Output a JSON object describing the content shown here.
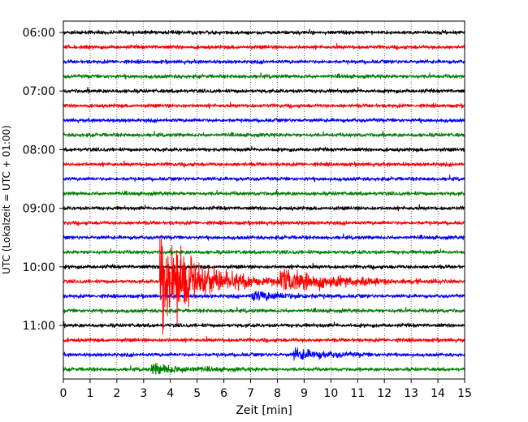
{
  "chart_data": {
    "type": "line",
    "title": "",
    "xlabel": "Zeit  [min]",
    "ylabel": "UTC (Lokalzeit = UTC + 01:00)",
    "xlim": [
      0,
      15
    ],
    "x_ticks": [
      "0",
      "1",
      "2",
      "3",
      "4",
      "5",
      "6",
      "7",
      "8",
      "9",
      "10",
      "11",
      "12",
      "13",
      "14",
      "15"
    ],
    "y_ticks": [
      "06:00",
      "07:00",
      "08:00",
      "09:00",
      "10:00",
      "11:00"
    ],
    "grid": "vertical dotted at each minute",
    "trace_interval_minutes": 15,
    "trace_colors": [
      "#000000",
      "#ff0000",
      "#0000ff",
      "#008000"
    ],
    "traces": [
      {
        "start": "06:00",
        "color": "#000000",
        "amplitude": "low"
      },
      {
        "start": "06:15",
        "color": "#ff0000",
        "amplitude": "low"
      },
      {
        "start": "06:30",
        "color": "#0000ff",
        "amplitude": "low"
      },
      {
        "start": "06:45",
        "color": "#008000",
        "amplitude": "low"
      },
      {
        "start": "07:00",
        "color": "#000000",
        "amplitude": "low"
      },
      {
        "start": "07:15",
        "color": "#ff0000",
        "amplitude": "low"
      },
      {
        "start": "07:30",
        "color": "#0000ff",
        "amplitude": "low"
      },
      {
        "start": "07:45",
        "color": "#008000",
        "amplitude": "low"
      },
      {
        "start": "08:00",
        "color": "#000000",
        "amplitude": "low"
      },
      {
        "start": "08:15",
        "color": "#ff0000",
        "amplitude": "low"
      },
      {
        "start": "08:30",
        "color": "#0000ff",
        "amplitude": "low"
      },
      {
        "start": "08:45",
        "color": "#008000",
        "amplitude": "low"
      },
      {
        "start": "09:00",
        "color": "#000000",
        "amplitude": "low"
      },
      {
        "start": "09:15",
        "color": "#ff0000",
        "amplitude": "low"
      },
      {
        "start": "09:30",
        "color": "#0000ff",
        "amplitude": "low"
      },
      {
        "start": "09:45",
        "color": "#008000",
        "amplitude": "low"
      },
      {
        "start": "10:00",
        "color": "#000000",
        "amplitude": "low"
      },
      {
        "start": "10:15",
        "color": "#ff0000",
        "amplitude": "very high",
        "event_onset_min": 3.6,
        "peak_min": 4.1
      },
      {
        "start": "10:30",
        "color": "#0000ff",
        "amplitude": "medium",
        "event_onset_min": 7.0
      },
      {
        "start": "10:45",
        "color": "#008000",
        "amplitude": "low"
      },
      {
        "start": "11:00",
        "color": "#000000",
        "amplitude": "low"
      },
      {
        "start": "11:15",
        "color": "#ff0000",
        "amplitude": "low"
      },
      {
        "start": "11:30",
        "color": "#0000ff",
        "amplitude": "medium",
        "event_onset_min": 8.6
      },
      {
        "start": "11:45",
        "color": "#008000",
        "amplitude": "medium",
        "event_onset_min": 3.3
      }
    ]
  }
}
